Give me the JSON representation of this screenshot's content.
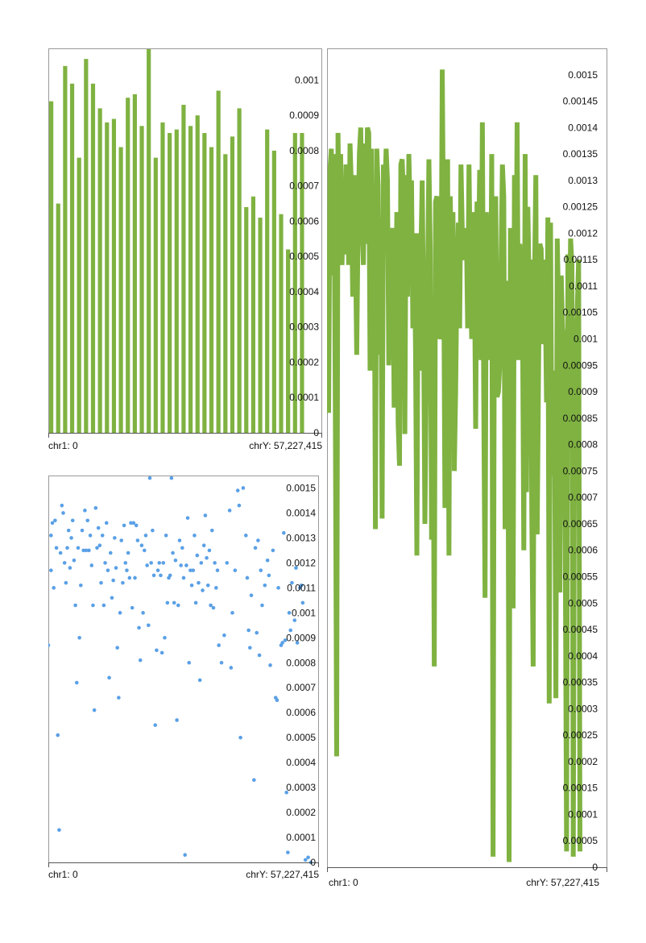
{
  "chart_data": [
    {
      "type": "bar",
      "color": "#7fb241",
      "x_start_label": "chr1: 0",
      "x_end_label": "chrY: 57,227,415",
      "ylim": [
        0,
        0.00109
      ],
      "yticks": [
        "0",
        "0.0001",
        "0.0002",
        "0.0003",
        "0.0004",
        "0.0005",
        "0.0006",
        "0.0007",
        "0.0008",
        "0.0009",
        "0.001"
      ],
      "values": [
        0.00094,
        0.00065,
        0.00104,
        0.00099,
        0.00078,
        0.00106,
        0.00099,
        0.00092,
        0.00088,
        0.00089,
        0.00081,
        0.00095,
        0.00096,
        0.00087,
        0.00111,
        0.00078,
        0.00088,
        0.00085,
        0.00086,
        0.00093,
        0.00087,
        0.0009,
        0.00085,
        0.00081,
        0.00097,
        0.00079,
        0.00084,
        0.00092,
        0.00064,
        0.00067,
        0.00061,
        0.00086,
        0.0008,
        0.00062,
        0.00052,
        0.00085,
        0.00085
      ]
    },
    {
      "type": "line",
      "color": "#7fb241",
      "x_start_label": "chr1: 0",
      "x_end_label": "chrY: 57,227,415",
      "ylim": [
        0,
        0.00155
      ],
      "yticks": [
        "0",
        "0.00005",
        "0.0001",
        "0.00015",
        "0.0002",
        "0.00025",
        "0.0003",
        "0.00035",
        "0.0004",
        "0.00045",
        "0.0005",
        "0.00055",
        "0.0006",
        "0.00065",
        "0.0007",
        "0.00075",
        "0.0008",
        "0.00085",
        "0.0009",
        "0.00095",
        "0.001",
        "0.00105",
        "0.0011",
        "0.00115",
        "0.0012",
        "0.00125",
        "0.0013",
        "0.00135",
        "0.0014",
        "0.00145",
        "0.0015"
      ],
      "values": [
        0.00086,
        0.00132,
        0.00136,
        0.00112,
        0.00135,
        0.00087,
        0.00021,
        0.00139,
        0.00119,
        0.00135,
        0.00114,
        0.00126,
        0.00116,
        0.00133,
        0.00131,
        0.00114,
        0.00137,
        0.00129,
        0.00108,
        0.00131,
        0.00118,
        0.00097,
        0.00121,
        0.00135,
        0.0014,
        0.00122,
        0.00114,
        0.00137,
        0.00118,
        0.0014,
        0.00139,
        0.00094,
        0.00136,
        0.0011,
        0.00125,
        0.00064,
        0.00136,
        0.00129,
        0.00097,
        0.00123,
        0.00066,
        0.00133,
        0.00127,
        0.00136,
        0.0013,
        0.00095,
        0.00109,
        0.00118,
        0.00121,
        0.00087,
        0.00099,
        0.00124,
        0.00084,
        0.00076,
        0.00133,
        0.00134,
        0.00127,
        0.00082,
        0.00131,
        0.00108,
        0.00135,
        0.00124,
        0.0013,
        0.00102,
        0.0012,
        0.00098,
        0.00059,
        0.0012,
        0.00094,
        0.00116,
        0.0013,
        0.00104,
        0.00065,
        0.00091,
        0.0011,
        0.00134,
        0.00117,
        0.00062,
        0.00104,
        0.00038,
        0.00126,
        0.00127,
        0.00113,
        0.001,
        0.00101,
        0.00151,
        0.00118,
        0.00068,
        0.0012,
        0.00134,
        0.00059,
        0.00127,
        0.0011,
        0.00124,
        0.00075,
        0.0009,
        0.00112,
        0.00122,
        0.00102,
        0.00133,
        0.0012,
        0.00116,
        0.00115,
        0.00121,
        0.00102,
        0.00133,
        0.00112,
        0.001,
        0.00124,
        0.00114,
        0.00083,
        0.00126,
        0.00113,
        0.00132,
        0.00096,
        0.00141,
        0.0009,
        0.00051,
        0.00124,
        0.00114,
        0.00112,
        0.00096,
        0.00135,
        2e-05,
        0.00113,
        0.00127,
        0.00089,
        0.0009,
        0.00095,
        0.00115,
        0.00133,
        0.00127,
        0.00064,
        0.00099,
        0.00111,
        1e-05,
        0.00121,
        0.00095,
        0.00049,
        0.00131,
        0.00101,
        0.00141,
        0.00096,
        0.00118,
        0.00112,
        0.00106,
        0.0006,
        0.00135,
        0.00071,
        0.00125,
        0.0011,
        0.00115,
        0.00066,
        0.00038,
        0.00111,
        0.00131,
        0.00063,
        0.00093,
        0.00118,
        0.00117,
        0.00099,
        0.00115,
        0.00109,
        0.00088,
        0.00123,
        0.00031,
        0.00122,
        0.00074,
        0.00094,
        0.00085,
        0.00032,
        0.00119,
        0.00106,
        0.00052,
        0.00112,
        0.00102,
        0.001,
        0.00062,
        3e-05,
        0.00116,
        0.00099,
        0.00119,
        0.00114,
        2e-05,
        0.00091,
        0.00097,
        0.00106,
        0.00115,
        3e-05
      ]
    },
    {
      "type": "scatter",
      "color": "#5aa0e6",
      "x_start_label": "chr1: 0",
      "x_end_label": "chrY: 57,227,415",
      "ylim": [
        0,
        0.00155
      ],
      "yticks": [
        "0",
        "0.0001",
        "0.0002",
        "0.0003",
        "0.0004",
        "0.0005",
        "0.0006",
        "0.0007",
        "0.0008",
        "0.0009",
        "0.001",
        "0.0011",
        "0.0012",
        "0.0013",
        "0.0014",
        "0.0015"
      ],
      "points": [
        [
          0.0,
          0.00087
        ],
        [
          0.01,
          0.00117
        ],
        [
          0.01,
          0.00131
        ],
        [
          0.015,
          0.00136
        ],
        [
          0.02,
          0.0011
        ],
        [
          0.025,
          0.00137
        ],
        [
          0.03,
          0.00126
        ],
        [
          0.035,
          0.00051
        ],
        [
          0.04,
          0.00013
        ],
        [
          0.045,
          0.00124
        ],
        [
          0.05,
          0.00143
        ],
        [
          0.055,
          0.0014
        ],
        [
          0.06,
          0.0012
        ],
        [
          0.065,
          0.00112
        ],
        [
          0.07,
          0.00126
        ],
        [
          0.075,
          0.00133
        ],
        [
          0.08,
          0.00118
        ],
        [
          0.085,
          0.0013
        ],
        [
          0.09,
          0.00137
        ],
        [
          0.095,
          0.00121
        ],
        [
          0.1,
          0.00103
        ],
        [
          0.105,
          0.00072
        ],
        [
          0.11,
          0.00126
        ],
        [
          0.115,
          0.0009
        ],
        [
          0.12,
          0.00111
        ],
        [
          0.125,
          0.00133
        ],
        [
          0.13,
          0.00125
        ],
        [
          0.135,
          0.00141
        ],
        [
          0.14,
          0.00125
        ],
        [
          0.145,
          0.00137
        ],
        [
          0.15,
          0.00125
        ],
        [
          0.155,
          0.00131
        ],
        [
          0.16,
          0.00119
        ],
        [
          0.165,
          0.00103
        ],
        [
          0.17,
          0.00061
        ],
        [
          0.175,
          0.00142
        ],
        [
          0.18,
          0.00126
        ],
        [
          0.185,
          0.00134
        ],
        [
          0.19,
          0.00127
        ],
        [
          0.195,
          0.00112
        ],
        [
          0.2,
          0.00131
        ],
        [
          0.205,
          0.00103
        ],
        [
          0.21,
          0.0012
        ],
        [
          0.215,
          0.00136
        ],
        [
          0.22,
          0.00117
        ],
        [
          0.225,
          0.00074
        ],
        [
          0.23,
          0.00124
        ],
        [
          0.235,
          0.00106
        ],
        [
          0.24,
          0.00113
        ],
        [
          0.245,
          0.0013
        ],
        [
          0.25,
          0.00118
        ],
        [
          0.255,
          0.00086
        ],
        [
          0.26,
          0.00066
        ],
        [
          0.265,
          0.001
        ],
        [
          0.27,
          0.00129
        ],
        [
          0.275,
          0.00112
        ],
        [
          0.28,
          0.00135
        ],
        [
          0.285,
          0.0012
        ],
        [
          0.29,
          0.00117
        ],
        [
          0.295,
          0.00124
        ],
        [
          0.3,
          0.00114
        ],
        [
          0.305,
          0.00136
        ],
        [
          0.31,
          0.00102
        ],
        [
          0.315,
          0.00136
        ],
        [
          0.32,
          0.00114
        ],
        [
          0.325,
          0.00135
        ],
        [
          0.33,
          0.00129
        ],
        [
          0.335,
          0.00094
        ],
        [
          0.34,
          0.00081
        ],
        [
          0.345,
          0.00127
        ],
        [
          0.35,
          0.001
        ],
        [
          0.355,
          0.00125
        ],
        [
          0.36,
          0.00131
        ],
        [
          0.365,
          0.00119
        ],
        [
          0.37,
          0.00095
        ],
        [
          0.375,
          0.00154
        ],
        [
          0.38,
          0.0012
        ],
        [
          0.385,
          0.00133
        ],
        [
          0.39,
          0.00115
        ],
        [
          0.395,
          0.00055
        ],
        [
          0.4,
          0.00085
        ],
        [
          0.405,
          0.00117
        ],
        [
          0.41,
          0.0012
        ],
        [
          0.415,
          0.00115
        ],
        [
          0.42,
          0.00084
        ],
        [
          0.425,
          0.0012
        ],
        [
          0.43,
          0.0009
        ],
        [
          0.435,
          0.00131
        ],
        [
          0.44,
          0.00104
        ],
        [
          0.445,
          0.00114
        ],
        [
          0.45,
          0.00115
        ],
        [
          0.455,
          0.00154
        ],
        [
          0.46,
          0.00124
        ],
        [
          0.465,
          0.00104
        ],
        [
          0.47,
          0.00121
        ],
        [
          0.475,
          0.00057
        ],
        [
          0.48,
          0.00103
        ],
        [
          0.485,
          0.00129
        ],
        [
          0.49,
          0.00119
        ],
        [
          0.495,
          0.00126
        ],
        [
          0.5,
          0.00114
        ],
        [
          0.505,
          3e-05
        ],
        [
          0.51,
          0.00119
        ],
        [
          0.515,
          0.00138
        ],
        [
          0.52,
          0.0008
        ],
        [
          0.525,
          0.00117
        ],
        [
          0.53,
          0.00111
        ],
        [
          0.535,
          0.00117
        ],
        [
          0.54,
          0.00131
        ],
        [
          0.545,
          0.00104
        ],
        [
          0.55,
          0.00123
        ],
        [
          0.555,
          0.00112
        ],
        [
          0.56,
          0.00073
        ],
        [
          0.565,
          0.0012
        ],
        [
          0.57,
          0.00109
        ],
        [
          0.575,
          0.00127
        ],
        [
          0.58,
          0.00139
        ],
        [
          0.585,
          0.00122
        ],
        [
          0.59,
          0.00111
        ],
        [
          0.595,
          0.00125
        ],
        [
          0.6,
          0.00103
        ],
        [
          0.605,
          0.00133
        ],
        [
          0.61,
          0.00102
        ],
        [
          0.615,
          0.0012
        ],
        [
          0.62,
          0.0011
        ],
        [
          0.625,
          0.00117
        ],
        [
          0.63,
          0.00087
        ],
        [
          0.64,
          0.0008
        ],
        [
          0.65,
          0.00091
        ],
        [
          0.66,
          0.0012
        ],
        [
          0.67,
          0.00141
        ],
        [
          0.675,
          0.00078
        ],
        [
          0.68,
          0.001
        ],
        [
          0.69,
          0.00117
        ],
        [
          0.7,
          0.00149
        ],
        [
          0.705,
          0.00143
        ],
        [
          0.71,
          0.0005
        ],
        [
          0.72,
          0.0015
        ],
        [
          0.73,
          0.00131
        ],
        [
          0.735,
          0.00114
        ],
        [
          0.74,
          0.00093
        ],
        [
          0.745,
          0.00086
        ],
        [
          0.75,
          0.00107
        ],
        [
          0.76,
          0.00033
        ],
        [
          0.765,
          0.00126
        ],
        [
          0.77,
          0.00092
        ],
        [
          0.775,
          0.00129
        ],
        [
          0.78,
          0.00083
        ],
        [
          0.785,
          0.00117
        ],
        [
          0.79,
          0.00103
        ],
        [
          0.8,
          0.00111
        ],
        [
          0.81,
          0.00121
        ],
        [
          0.815,
          0.00115
        ],
        [
          0.82,
          0.00079
        ],
        [
          0.83,
          0.00125
        ],
        [
          0.84,
          0.00066
        ],
        [
          0.845,
          0.00065
        ],
        [
          0.85,
          0.0011
        ],
        [
          0.86,
          0.00087
        ],
        [
          0.865,
          0.00088
        ],
        [
          0.87,
          0.00132
        ],
        [
          0.875,
          0.00089
        ],
        [
          0.88,
          0.00028
        ],
        [
          0.885,
          4e-05
        ],
        [
          0.89,
          0.001
        ],
        [
          0.895,
          0.00093
        ],
        [
          0.9,
          0.00112
        ],
        [
          0.91,
          0.00097
        ],
        [
          0.915,
          0.00118
        ],
        [
          0.92,
          0.00088
        ],
        [
          0.93,
          0.0011
        ],
        [
          0.935,
          0.00111
        ],
        [
          0.94,
          0.00104
        ],
        [
          0.95,
          1e-05
        ],
        [
          0.96,
          2e-05
        ],
        [
          0.97,
          0.0
        ]
      ]
    }
  ]
}
